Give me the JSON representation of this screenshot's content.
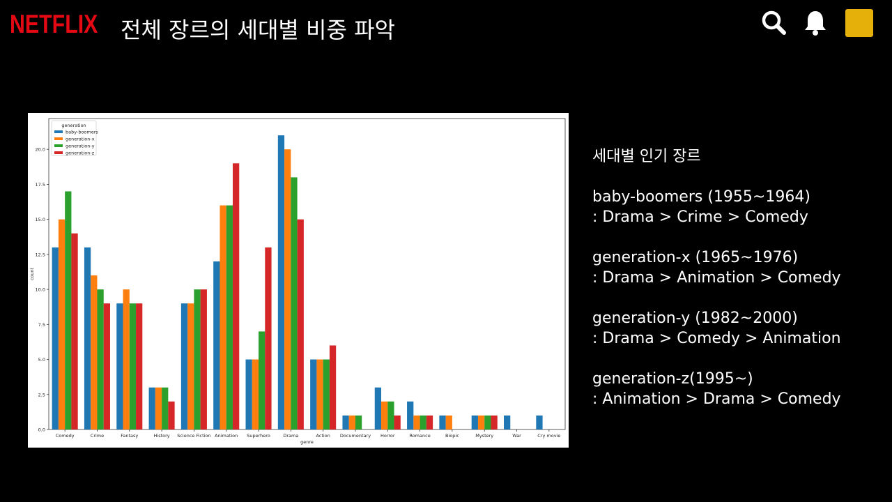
{
  "brand": {
    "logo_text": "NETFLIX",
    "logo_color": "#e50914"
  },
  "header": {
    "title": "전체 장르의 세대별 비중 파악",
    "avatar_color": "#e5b00a"
  },
  "icons": {
    "search": "search-icon",
    "notifications": "bell-icon"
  },
  "summary": {
    "heading": "세대별 인기 장르",
    "generations": [
      {
        "name": "baby-boomers (1955~1964)",
        "ranking": ": Drama > Crime > Comedy"
      },
      {
        "name": "generation-x (1965~1976)",
        "ranking": ": Drama > Animation > Comedy"
      },
      {
        "name": "generation-y (1982~2000)",
        "ranking": ": Drama > Comedy > Animation"
      },
      {
        "name": "generation-z(1995~)",
        "ranking": ": Animation > Drama > Comedy"
      }
    ]
  },
  "chart_data": {
    "type": "bar",
    "xlabel": "genre",
    "ylabel": "count",
    "ylim": [
      0,
      22.2
    ],
    "yticks": [
      "0.0",
      "2.5",
      "5.0",
      "7.5",
      "10.0",
      "12.5",
      "15.0",
      "17.5",
      "20.0"
    ],
    "grid": false,
    "legend_title": "generation",
    "legend_position": "top-left",
    "categories": [
      "Comedy",
      "Crime",
      "Fantasy",
      "History",
      "Science Fiction",
      "Animation",
      "Superhero",
      "Drama",
      "Action",
      "Documentary",
      "Horror",
      "Romance",
      "Biopic",
      "Mystery",
      "War",
      "Cry movie"
    ],
    "series": [
      {
        "name": "baby-boomers",
        "color": "#1f77b4",
        "values": [
          13,
          13,
          9,
          3,
          9,
          12,
          5,
          21,
          5,
          1,
          3,
          2,
          1,
          1,
          1,
          1
        ]
      },
      {
        "name": "generation-x",
        "color": "#ff7f0e",
        "values": [
          15,
          11,
          10,
          3,
          9,
          16,
          5,
          20,
          5,
          1,
          2,
          1,
          1,
          1,
          0,
          0
        ]
      },
      {
        "name": "generation-y",
        "color": "#2ca02c",
        "values": [
          17,
          10,
          9,
          3,
          10,
          16,
          7,
          18,
          5,
          1,
          2,
          1,
          0,
          1,
          0,
          0
        ]
      },
      {
        "name": "generation-z",
        "color": "#d62728",
        "values": [
          14,
          9,
          9,
          2,
          10,
          19,
          13,
          15,
          6,
          0,
          1,
          1,
          0,
          1,
          0,
          0
        ]
      }
    ]
  }
}
